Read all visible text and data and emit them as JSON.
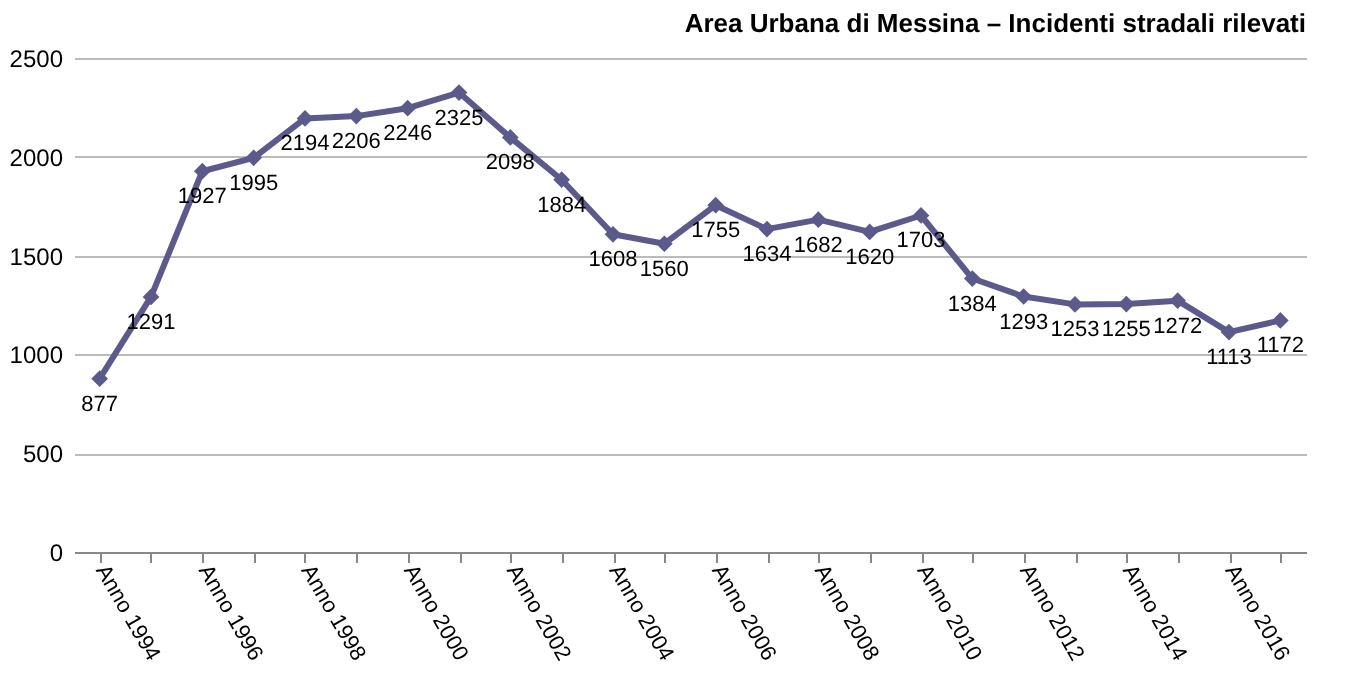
{
  "chart_data": {
    "type": "line",
    "title": "Area Urbana di Messina –  Incidenti stradali rilevati",
    "categories": [
      "Anno 1994",
      null,
      "Anno 1996",
      null,
      "Anno 1998",
      null,
      "Anno 2000",
      null,
      "Anno 2002",
      null,
      "Anno 2004",
      null,
      "Anno 2006",
      null,
      "Anno 2008",
      null,
      "Anno 2010",
      null,
      "Anno 2012",
      null,
      "Anno 2014",
      null,
      "Anno 2016",
      null
    ],
    "series": [
      {
        "color": "#5c5a8a",
        "values": [
          877,
          1291,
          1927,
          1995,
          2194,
          2206,
          2246,
          2325,
          2098,
          1884,
          1608,
          1560,
          1755,
          1634,
          1682,
          1620,
          1703,
          1384,
          1293,
          1253,
          1255,
          1272,
          1113,
          1172
        ]
      }
    ],
    "ylim": [
      0,
      2500
    ],
    "yticks": [
      0,
      500,
      1000,
      1500,
      2000,
      2500
    ],
    "grid": "y",
    "marker": "diamond",
    "data_labels": true,
    "legend": false
  }
}
